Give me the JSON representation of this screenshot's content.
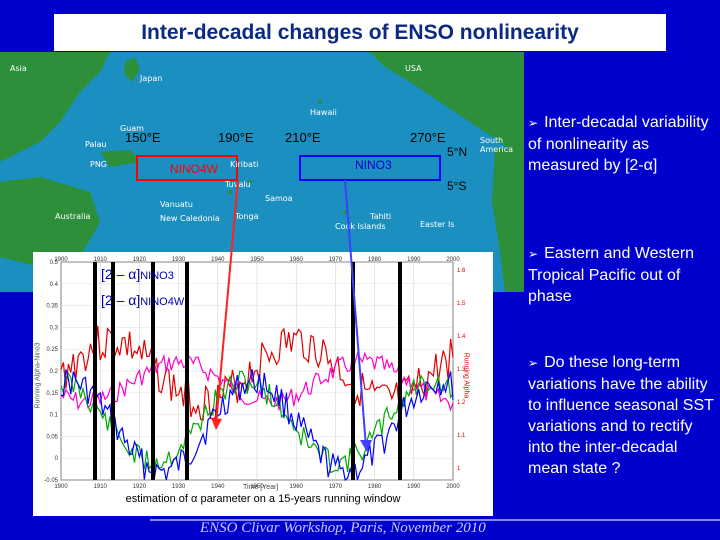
{
  "title": "Inter-decadal changes of ENSO nonlinearity",
  "map": {
    "lon_labels": [
      "150°E",
      "190°E",
      "210°E",
      "270°E"
    ],
    "lat_labels": [
      "5°N",
      "5°S"
    ],
    "region_labels": [
      "NINO4W",
      "NINO3"
    ],
    "place_labels": [
      "Asia",
      "Japan",
      "USA",
      "Hawaii",
      "PNG",
      "Kiribati",
      "Tuvalu",
      "Samoa",
      "Tonga",
      "Vanuatu",
      "Australia",
      "New Caledonia",
      "Tahiti",
      "South America",
      "Easter Is",
      "Cook Islands",
      "Guam",
      "Palau"
    ]
  },
  "chart": {
    "legend_1": "[2 – α]",
    "legend_1_sub": "NINO3",
    "legend_2": "[2 – α]",
    "legend_2_sub": "NINO4W",
    "caption": "estimation of α parameter on a 15-years running window",
    "x_ticks": [
      "1900",
      "1910",
      "1920",
      "1930",
      "1940",
      "1950",
      "1960",
      "1970",
      "1980",
      "1990",
      "2000"
    ],
    "left_ticks": [
      "0.5",
      "0.4",
      "0.35",
      "0.3",
      "0.25",
      "0.2",
      "0.15",
      "0.1",
      "0.05",
      "0",
      "-0.05"
    ],
    "right_ticks": [
      "1.6",
      "1.5",
      "1.4",
      "1.3",
      "1.2",
      "1.1",
      "1"
    ],
    "x_label": "Time [Year]",
    "y_label_left": "Running Alpha-Nino3",
    "y_label_right": "Running Alpha",
    "colors": {
      "red": "#e00000",
      "green": "#00aa00",
      "blue": "#0000ff",
      "pink": "#ff00cc",
      "black": "#000000"
    }
  },
  "bullets": [
    "Inter-decadal variability of nonlinearity as measured by [2-α]",
    "Eastern and Western Tropical Pacific out of phase",
    "Do these long-term variations have the ability to influence seasonal SST variations and to rectify into the inter-decadal mean state ?"
  ],
  "footer": "ENSO Clivar Workshop, Paris, November 2010"
}
